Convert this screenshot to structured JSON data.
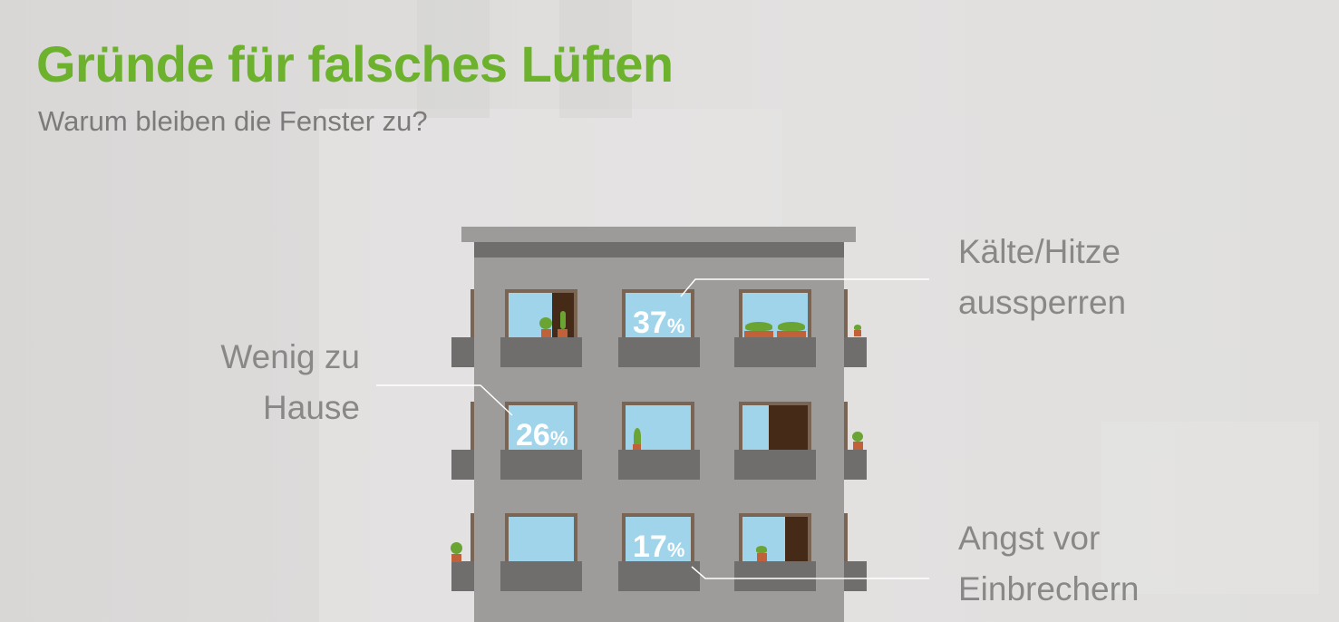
{
  "header": {
    "title": "Gründe für falsches Lüften",
    "subtitle": "Warum bleiben die Fenster zu?"
  },
  "colors": {
    "title": "#6cb22c",
    "text": "#8a8887",
    "building": "#9d9c9b",
    "window": "#9fd4ea"
  },
  "chart_data": {
    "type": "bar",
    "title": "Gründe für falsches Lüften",
    "subtitle": "Warum bleiben die Fenster zu?",
    "categories": [
      "Kälte/Hitze aussperren",
      "Wenig zu Hause",
      "Angst vor Einbrechern"
    ],
    "values": [
      37,
      26,
      17
    ],
    "unit": "%"
  },
  "items": [
    {
      "label_line1": "Kälte/Hitze",
      "label_line2": "aussperren",
      "value": "37",
      "unit": "%"
    },
    {
      "label_line1": "Wenig zu",
      "label_line2": "Hause",
      "value": "26",
      "unit": "%"
    },
    {
      "label_line1": "Angst vor",
      "label_line2": "Einbrechern",
      "value": "17",
      "unit": "%"
    }
  ]
}
